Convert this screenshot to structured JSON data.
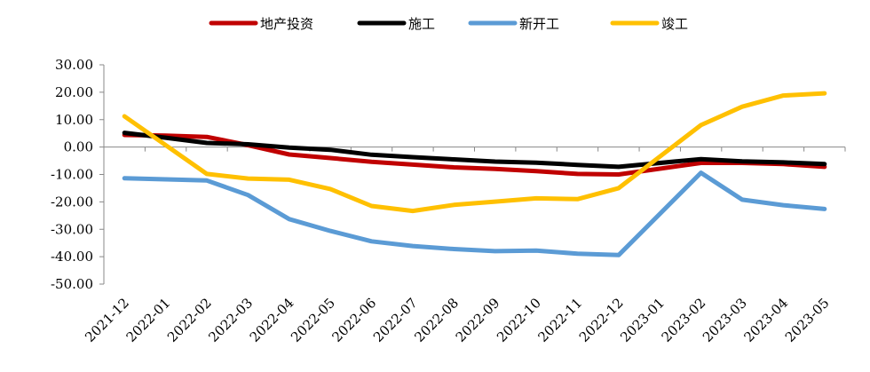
{
  "chart_data": {
    "type": "line",
    "categories": [
      "2021-12",
      "2022-01",
      "2022-02",
      "2022-03",
      "2022-04",
      "2022-05",
      "2022-06",
      "2022-07",
      "2022-08",
      "2022-09",
      "2022-10",
      "2022-11",
      "2022-12",
      "2023-01",
      "2023-02",
      "2023-03",
      "2023-04",
      "2023-05"
    ],
    "y_ticks": [
      "30.00",
      "20.00",
      "10.00",
      "0.00",
      "-10.00",
      "-20.00",
      "-30.00",
      "-40.00",
      "-50.00"
    ],
    "ylim": [
      -50,
      30
    ],
    "legend_position": "top-center",
    "grid": false,
    "series": [
      {
        "name": "地产投资",
        "color": "#c00000",
        "values": [
          4.4,
          4.2,
          3.7,
          0.7,
          -2.7,
          -4.0,
          -5.4,
          -6.4,
          -7.4,
          -8.0,
          -8.8,
          -9.8,
          -10.0,
          null,
          -5.8,
          -5.8,
          -6.2,
          -7.2
        ]
      },
      {
        "name": "施工",
        "color": "#000000",
        "values": [
          5.2,
          3.4,
          1.5,
          1.0,
          -0.2,
          -1.0,
          -2.8,
          -3.7,
          -4.5,
          -5.3,
          -5.7,
          -6.5,
          -7.2,
          null,
          -4.4,
          -5.2,
          -5.6,
          -6.2
        ]
      },
      {
        "name": "新开工",
        "color": "#5b9bd5",
        "values": [
          -11.4,
          null,
          -12.2,
          -17.5,
          -26.3,
          -30.6,
          -34.4,
          -36.1,
          -37.2,
          -38.0,
          -37.8,
          -38.9,
          -39.4,
          null,
          -9.4,
          -19.2,
          -21.2,
          -22.6
        ]
      },
      {
        "name": "竣工",
        "color": "#ffc000",
        "values": [
          11.2,
          null,
          -9.8,
          -11.5,
          -11.9,
          -15.3,
          -21.5,
          -23.3,
          -21.1,
          -19.9,
          -18.7,
          -19.0,
          -15.0,
          null,
          8.0,
          14.7,
          18.8,
          19.6
        ]
      }
    ]
  }
}
